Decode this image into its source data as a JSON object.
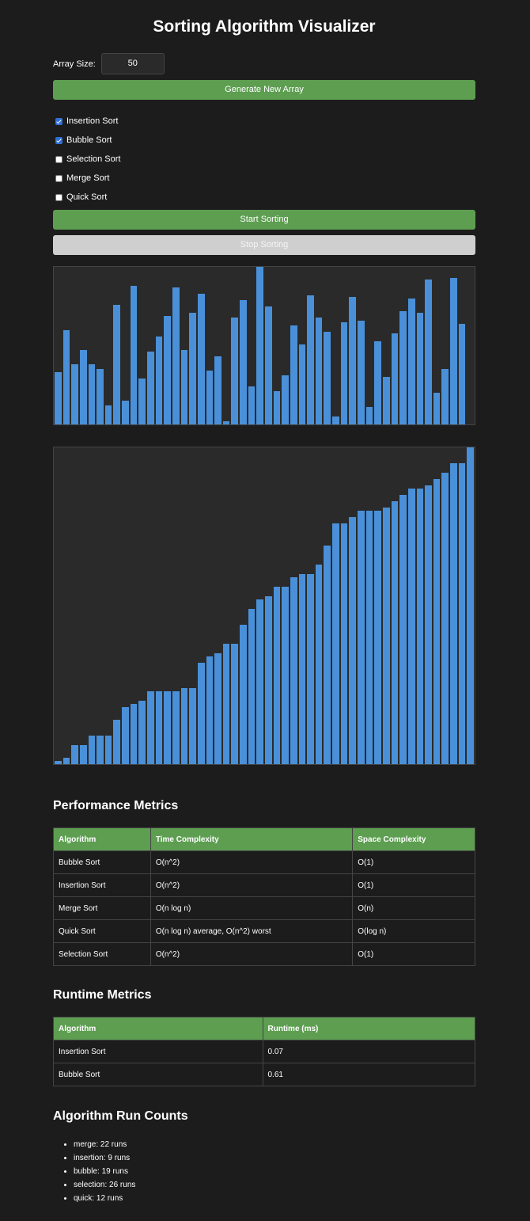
{
  "title": "Sorting Algorithm Visualizer",
  "array_size": {
    "label": "Array Size:",
    "value": "50"
  },
  "buttons": {
    "generate": "Generate New Array",
    "start": "Start Sorting",
    "stop": "Stop Sorting"
  },
  "algorithms": [
    {
      "label": "Insertion Sort",
      "checked": true
    },
    {
      "label": "Bubble Sort",
      "checked": true
    },
    {
      "label": "Selection Sort",
      "checked": false
    },
    {
      "label": "Merge Sort",
      "checked": false
    },
    {
      "label": "Quick Sort",
      "checked": false
    }
  ],
  "colors": {
    "accent": "#5d9e51",
    "bar": "#4a90d9",
    "background": "#1c1c1c",
    "panel": "#2a2a2a"
  },
  "chart_data": [
    {
      "type": "bar",
      "ylim": [
        0,
        100
      ],
      "values": [
        33,
        60,
        38,
        47,
        38,
        35,
        12,
        76,
        15,
        88,
        29,
        46,
        56,
        69,
        87,
        47,
        71,
        83,
        34,
        43,
        2,
        68,
        79,
        24,
        100,
        75,
        21,
        31,
        63,
        51,
        82,
        68,
        59,
        5,
        65,
        81,
        66,
        11,
        53,
        30,
        58,
        72,
        80,
        71,
        92,
        20,
        35,
        93,
        64,
        0
      ]
    },
    {
      "type": "bar",
      "ylim": [
        0,
        100
      ],
      "values": [
        1,
        2,
        6,
        6,
        9,
        9,
        9,
        14,
        18,
        19,
        20,
        23,
        23,
        23,
        23,
        24,
        24,
        32,
        34,
        35,
        38,
        38,
        44,
        49,
        52,
        53,
        56,
        56,
        59,
        60,
        60,
        63,
        69,
        76,
        76,
        78,
        80,
        80,
        80,
        81,
        83,
        85,
        87,
        87,
        88,
        90,
        92,
        95,
        95,
        100
      ]
    }
  ],
  "performance": {
    "heading": "Performance Metrics",
    "headers": [
      "Algorithm",
      "Time Complexity",
      "Space Complexity"
    ],
    "rows": [
      [
        "Bubble Sort",
        "O(n^2)",
        "O(1)"
      ],
      [
        "Insertion Sort",
        "O(n^2)",
        "O(1)"
      ],
      [
        "Merge Sort",
        "O(n log n)",
        "O(n)"
      ],
      [
        "Quick Sort",
        "O(n log n) average, O(n^2) worst",
        "O(log n)"
      ],
      [
        "Selection Sort",
        "O(n^2)",
        "O(1)"
      ]
    ]
  },
  "runtime": {
    "heading": "Runtime Metrics",
    "headers": [
      "Algorithm",
      "Runtime (ms)"
    ],
    "rows": [
      [
        "Insertion Sort",
        "0.07"
      ],
      [
        "Bubble Sort",
        "0.61"
      ]
    ]
  },
  "run_counts": {
    "heading": "Algorithm Run Counts",
    "items": [
      "merge: 22 runs",
      "insertion: 9 runs",
      "bubble: 19 runs",
      "selection: 26 runs",
      "quick: 12 runs"
    ]
  }
}
